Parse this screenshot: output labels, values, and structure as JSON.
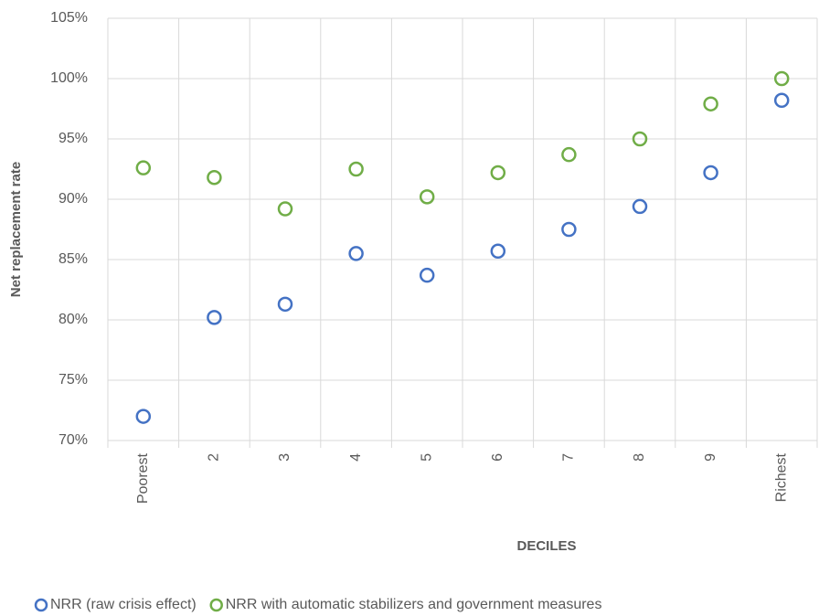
{
  "chart_data": {
    "type": "scatter",
    "xlabel": "DECILES",
    "ylabel": "Net replacement rate",
    "categories": [
      "Poorest",
      "2",
      "3",
      "4",
      "5",
      "6",
      "7",
      "8",
      "9",
      "Richest"
    ],
    "series": [
      {
        "name": "NRR (raw crisis effect)",
        "color": "#4472c4",
        "values": [
          72,
          80.2,
          81.3,
          85.5,
          83.7,
          85.7,
          87.5,
          89.4,
          92.2,
          98.2
        ]
      },
      {
        "name": "NRR with automatic stabilizers and government measures",
        "color": "#70ad47",
        "values": [
          92.6,
          91.8,
          89.2,
          92.5,
          90.2,
          92.2,
          93.7,
          95,
          97.9,
          100
        ]
      }
    ],
    "ylim": [
      70,
      105
    ],
    "yticks": [
      {
        "value": 70,
        "label": "70%"
      },
      {
        "value": 75,
        "label": "75%"
      },
      {
        "value": 80,
        "label": "80%"
      },
      {
        "value": 85,
        "label": "85%"
      },
      {
        "value": 90,
        "label": "90%"
      },
      {
        "value": 95,
        "label": "95%"
      },
      {
        "value": 100,
        "label": "100%"
      },
      {
        "value": 105,
        "label": "105%"
      }
    ],
    "grid": true,
    "legend": "bottom"
  }
}
